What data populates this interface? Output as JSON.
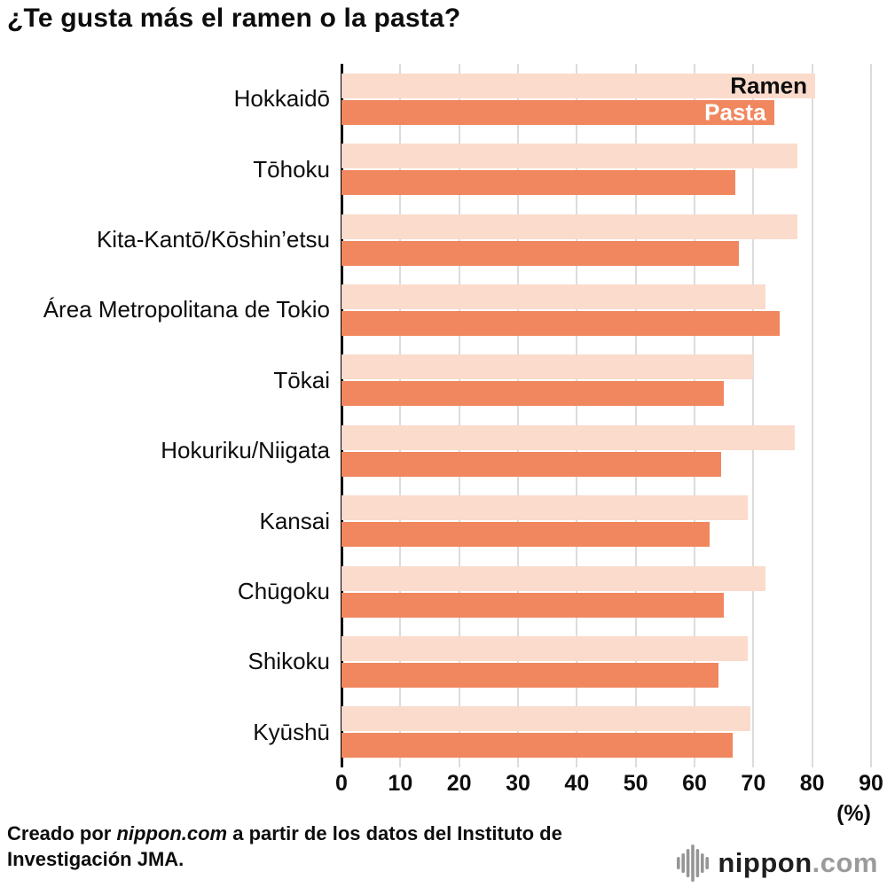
{
  "title": "¿Te gusta más el ramen o la pasta?",
  "chart_data": {
    "type": "bar",
    "orientation": "horizontal",
    "title": "¿Te gusta más el ramen o la pasta?",
    "categories": [
      "Hokkaidō",
      "Tōhoku",
      "Kita-Kantō/Kōshin’etsu",
      "Área Metropolitana de Tokio",
      "Tōkai",
      "Hokuriku/Niigata",
      "Kansai",
      "Chūgoku",
      "Shikoku",
      "Kyūshū"
    ],
    "series": [
      {
        "name": "Ramen",
        "color": "#fadbcc",
        "label_color": "#0d0d0d",
        "values": [
          80.5,
          77.5,
          77.5,
          72,
          70,
          77,
          69,
          72,
          69,
          69.5
        ]
      },
      {
        "name": "Pasta",
        "color": "#f0875f",
        "label_color": "#ffffff",
        "values": [
          73.5,
          67,
          67.5,
          74.5,
          65,
          64.5,
          62.5,
          65,
          64,
          66.5
        ]
      }
    ],
    "xlim": [
      0,
      90
    ],
    "xticks": [
      0,
      10,
      20,
      30,
      40,
      50,
      60,
      70,
      80,
      90
    ],
    "unit_label": "(%)",
    "grid": true,
    "legend_position": "inside-first-group"
  },
  "footer": {
    "credit_prefix": "Creado por ",
    "credit_source": "nippon.com",
    "credit_suffix": " a partir de los datos del Instituto de Investigación JMA.",
    "logo_name": "nippon",
    "logo_suffix": ".com"
  }
}
